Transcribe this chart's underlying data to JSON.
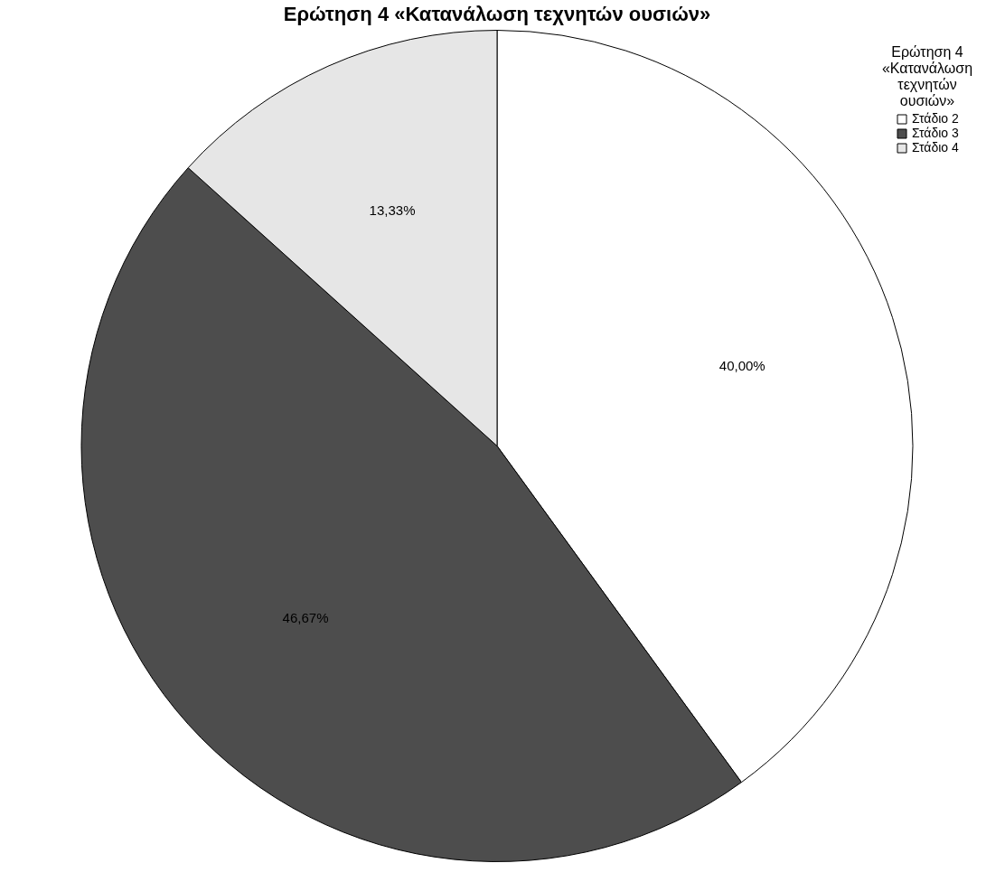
{
  "chart_data": {
    "type": "pie",
    "title": "Ερώτηση 4 «Κατανάλωση τεχνητών ουσιών»",
    "legend_title": "Ερώτηση 4 «Κατανάλωση τεχνητών ουσιών»",
    "categories": [
      "Στάδιο 2",
      "Στάδιο 3",
      "Στάδιο 4"
    ],
    "values": [
      40.0,
      46.67,
      13.33
    ],
    "colors": [
      "#ffffff",
      "#4d4d4d",
      "#e6e6e6"
    ],
    "value_labels": [
      "40,00%",
      "46,67%",
      "13,33%"
    ],
    "legend": "top right"
  }
}
